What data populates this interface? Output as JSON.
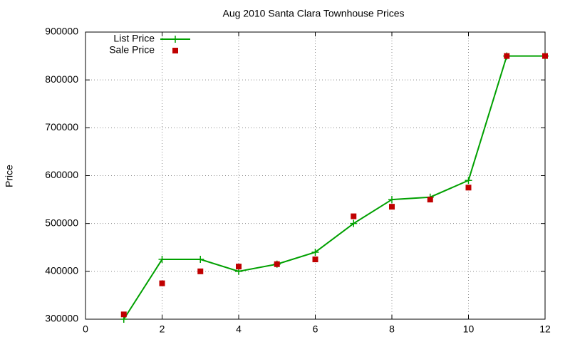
{
  "chart_data": {
    "type": "line",
    "title": "Aug 2010 Santa Clara Townhouse Prices",
    "y_label": "Price",
    "x": [
      1,
      2,
      3,
      4,
      5,
      6,
      7,
      8,
      9,
      10,
      11,
      12
    ],
    "series": [
      {
        "name": "List Price",
        "color": "#00a000",
        "style": "linespoints",
        "values": [
          300000,
          425000,
          425000,
          400000,
          415000,
          440000,
          500000,
          550000,
          555000,
          590000,
          850000,
          850000
        ]
      },
      {
        "name": "Sale Price",
        "color": "#c00000",
        "style": "points",
        "values": [
          310000,
          375000,
          400000,
          410000,
          415000,
          425000,
          515000,
          535000,
          550000,
          575000,
          850000,
          850000
        ]
      }
    ],
    "xlim": [
      0,
      12
    ],
    "xticks": [
      0,
      2,
      4,
      6,
      8,
      10,
      12
    ],
    "ylim": [
      300000,
      900000
    ],
    "yticks": [
      300000,
      400000,
      500000,
      600000,
      700000,
      800000,
      900000
    ],
    "grid": true,
    "legend": "top-left"
  }
}
